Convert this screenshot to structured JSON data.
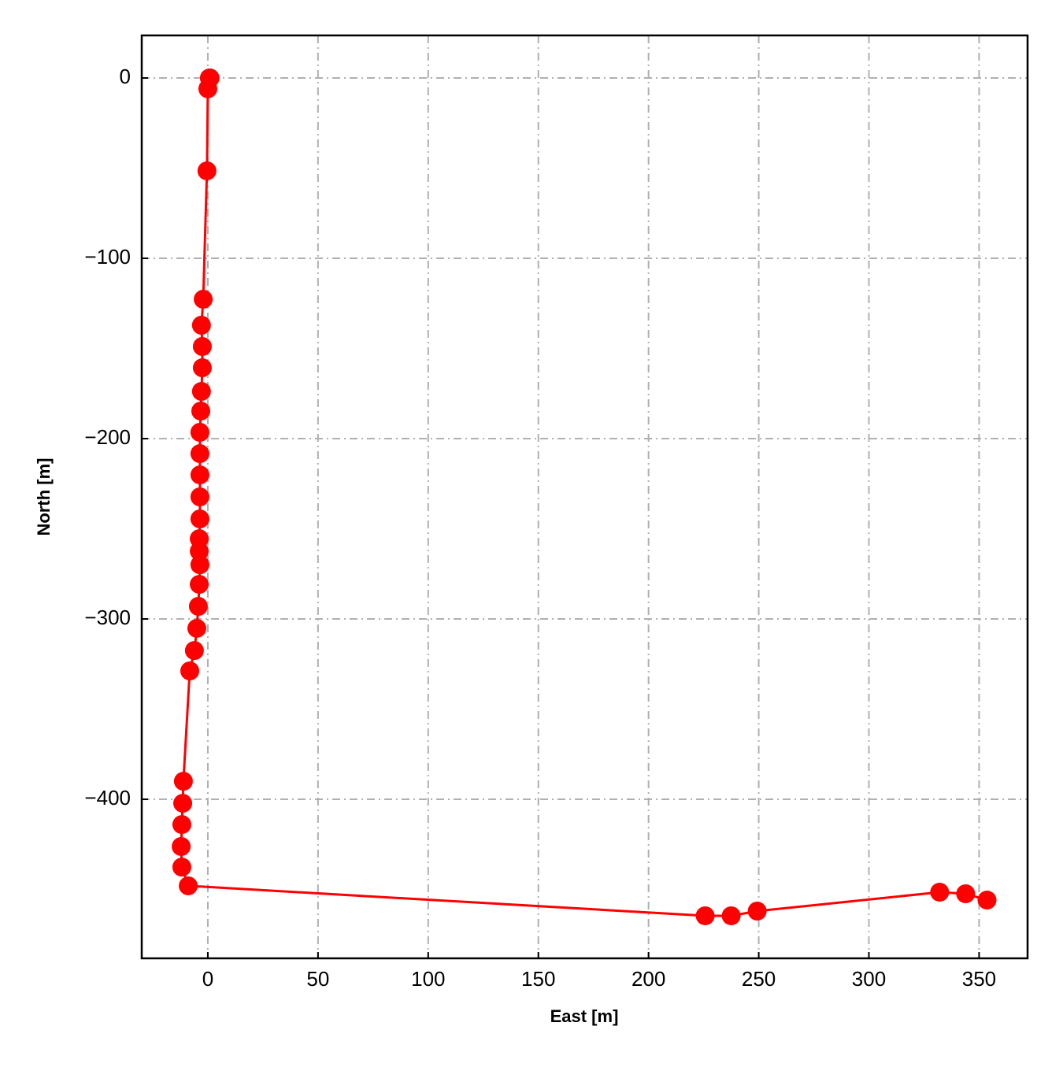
{
  "chart_data": {
    "type": "line",
    "xlabel": "East [m]",
    "ylabel": "North [m]",
    "x": [
      0.7,
      1,
      0,
      -0.4,
      -2.1,
      -2.9,
      -2.5,
      -2.5,
      -2.9,
      -3.2,
      -3.6,
      -3.6,
      -3.6,
      -3.6,
      -3.6,
      -3.9,
      -3.9,
      -3.6,
      -3.9,
      -4.3,
      -5,
      -6.1,
      -8.2,
      -11.1,
      -11.4,
      -11.8,
      -12.1,
      -11.8,
      -8.9,
      225.7,
      237.5,
      249.3,
      332.1,
      343.9,
      353.6
    ],
    "series": [
      {
        "color": "#ff0000",
        "values": [
          0,
          0,
          -6,
          -51.5,
          -122.7,
          -137.1,
          -148.9,
          -160.7,
          -173.8,
          -184.7,
          -196.5,
          -208.3,
          -220.1,
          -232.3,
          -244.5,
          -255.5,
          -262.4,
          -269.9,
          -280.8,
          -293,
          -305.2,
          -317.5,
          -328.8,
          -390,
          -402.2,
          -414,
          -426.2,
          -437.6,
          -448,
          -464.6,
          -464.6,
          -462,
          -451.5,
          -452.4,
          -455.9
        ]
      }
    ],
    "xlim": [
      -30,
      372
    ],
    "ylim": [
      -488.2,
      23.6
    ],
    "xticks": [
      0,
      50,
      100,
      150,
      200,
      250,
      300,
      350
    ],
    "yticks": [
      0,
      {
        "value": -100,
        "label": "−100"
      },
      {
        "value": -200,
        "label": "−200"
      },
      {
        "value": -300,
        "label": "−300"
      },
      {
        "value": -400,
        "label": "−400"
      }
    ],
    "grid": true
  }
}
